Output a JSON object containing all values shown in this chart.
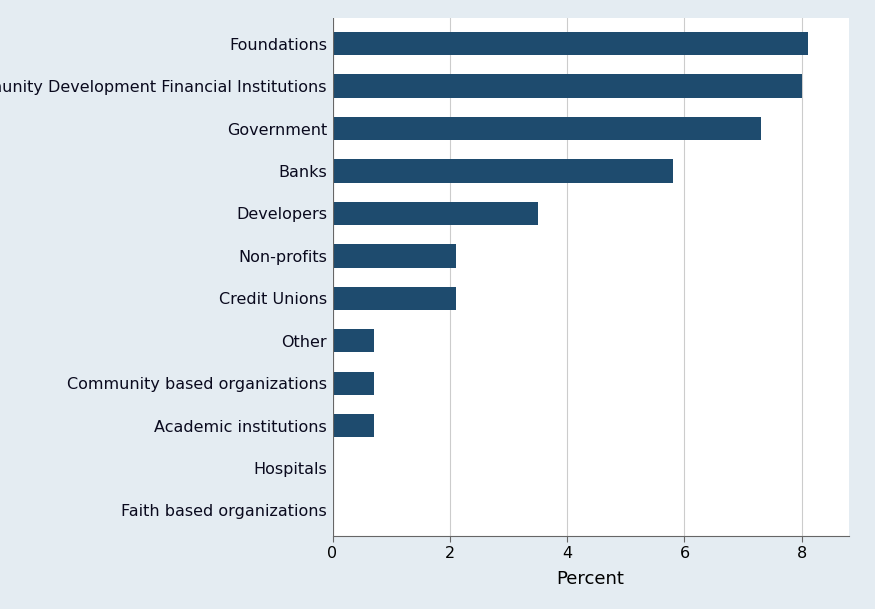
{
  "categories": [
    "Faith based organizations",
    "Hospitals",
    "Academic institutions",
    "Community based organizations",
    "Other",
    "Credit Unions",
    "Non-profits",
    "Developers",
    "Banks",
    "Government",
    "Community Development Financial Institutions",
    "Foundations"
  ],
  "values": [
    0,
    0,
    0.7,
    0.7,
    0.7,
    2.1,
    2.1,
    3.5,
    5.8,
    7.3,
    8.0,
    8.1
  ],
  "bar_color": "#1e4b6e",
  "background_color": "#e4ecf2",
  "plot_background_color": "#ffffff",
  "xlabel": "Percent",
  "xlim": [
    0,
    8.8
  ],
  "xticks": [
    0,
    2,
    4,
    6,
    8
  ],
  "bar_height": 0.55,
  "grid_color": "#cccccc",
  "label_fontsize": 11.5,
  "axis_fontsize": 13
}
